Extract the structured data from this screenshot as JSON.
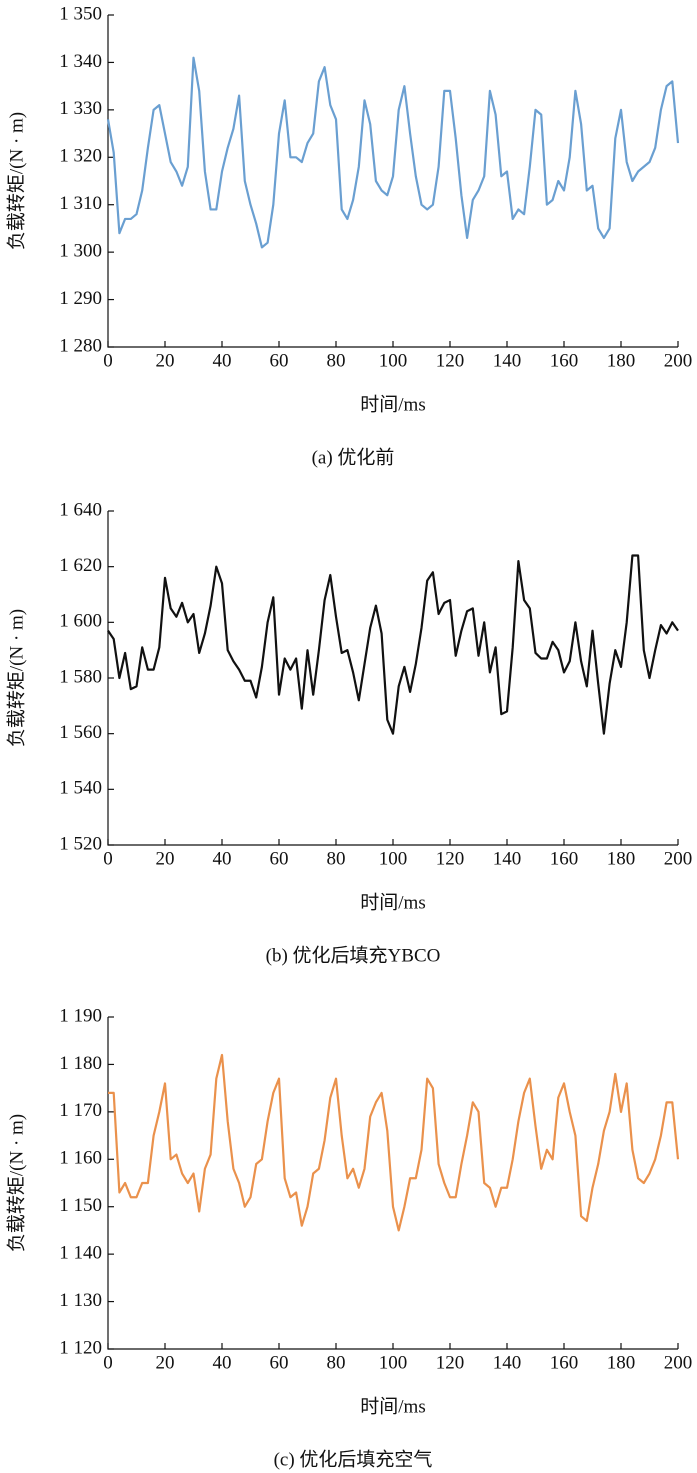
{
  "chart_data": [
    {
      "type": "line",
      "caption": "(a) 优化前",
      "x_label": "时间/ms",
      "y_label": "负载转矩/(N · m)",
      "color": "#6a9fd1",
      "x": [
        0,
        2,
        4,
        6,
        8,
        10,
        12,
        14,
        16,
        18,
        20,
        22,
        24,
        26,
        28,
        30,
        32,
        34,
        36,
        38,
        40,
        42,
        44,
        46,
        48,
        50,
        52,
        54,
        56,
        58,
        60,
        62,
        64,
        66,
        68,
        70,
        72,
        74,
        76,
        78,
        80,
        82,
        84,
        86,
        88,
        90,
        92,
        94,
        96,
        98,
        100,
        102,
        104,
        106,
        108,
        110,
        112,
        114,
        116,
        118,
        120,
        122,
        124,
        126,
        128,
        130,
        132,
        134,
        136,
        138,
        140,
        142,
        144,
        146,
        148,
        150,
        152,
        154,
        156,
        158,
        160,
        162,
        164,
        166,
        168,
        170,
        172,
        174,
        176,
        178,
        180,
        182,
        184,
        186,
        188,
        190,
        192,
        194,
        196,
        198,
        200
      ],
      "values": [
        1328,
        1321,
        1304,
        1307,
        1307,
        1308,
        1313,
        1322,
        1330,
        1331,
        1325,
        1319,
        1317,
        1314,
        1318,
        1341,
        1334,
        1317,
        1309,
        1309,
        1317,
        1322,
        1326,
        1333,
        1315,
        1310,
        1306,
        1301,
        1302,
        1310,
        1325,
        1332,
        1320,
        1320,
        1319,
        1323,
        1325,
        1336,
        1339,
        1331,
        1328,
        1309,
        1307,
        1311,
        1318,
        1332,
        1327,
        1315,
        1313,
        1312,
        1316,
        1330,
        1335,
        1325,
        1316,
        1310,
        1309,
        1310,
        1318,
        1334,
        1334,
        1324,
        1312,
        1303,
        1311,
        1313,
        1316,
        1334,
        1329,
        1316,
        1317,
        1307,
        1309,
        1308,
        1318,
        1330,
        1329,
        1310,
        1311,
        1315,
        1313,
        1320,
        1334,
        1327,
        1313,
        1314,
        1305,
        1303,
        1305,
        1324,
        1330,
        1319,
        1315,
        1317,
        1318,
        1319,
        1322,
        1330,
        1335,
        1336,
        1323
      ],
      "xlim": [
        0,
        200
      ],
      "xticks": [
        0,
        20,
        40,
        60,
        80,
        100,
        120,
        140,
        160,
        180,
        200
      ],
      "ylim": [
        1280,
        1350
      ],
      "yticks": [
        {
          "value": 1280,
          "label": "1 280"
        },
        {
          "value": 1290,
          "label": "1 290"
        },
        {
          "value": 1300,
          "label": "1 300"
        },
        {
          "value": 1310,
          "label": "1 310"
        },
        {
          "value": 1320,
          "label": "1 320"
        },
        {
          "value": 1330,
          "label": "1 330"
        },
        {
          "value": 1340,
          "label": "1 340"
        },
        {
          "value": 1350,
          "label": "1 350"
        }
      ]
    },
    {
      "type": "line",
      "caption": "(b) 优化后填充YBCO",
      "x_label": "时间/ms",
      "y_label": "负载转矩/(N · m)",
      "color": "#111111",
      "x": [
        0,
        2,
        4,
        6,
        8,
        10,
        12,
        14,
        16,
        18,
        20,
        22,
        24,
        26,
        28,
        30,
        32,
        34,
        36,
        38,
        40,
        42,
        44,
        46,
        48,
        50,
        52,
        54,
        56,
        58,
        60,
        62,
        64,
        66,
        68,
        70,
        72,
        74,
        76,
        78,
        80,
        82,
        84,
        86,
        88,
        90,
        92,
        94,
        96,
        98,
        100,
        102,
        104,
        106,
        108,
        110,
        112,
        114,
        116,
        118,
        120,
        122,
        124,
        126,
        128,
        130,
        132,
        134,
        136,
        138,
        140,
        142,
        144,
        146,
        148,
        150,
        152,
        154,
        156,
        158,
        160,
        162,
        164,
        166,
        168,
        170,
        172,
        174,
        176,
        178,
        180,
        182,
        184,
        186,
        188,
        190,
        192,
        194,
        196,
        198,
        200
      ],
      "values": [
        1597,
        1594,
        1580,
        1589,
        1576,
        1577,
        1591,
        1583,
        1583,
        1591,
        1616,
        1605,
        1602,
        1607,
        1600,
        1603,
        1589,
        1596,
        1606,
        1620,
        1614,
        1590,
        1586,
        1583,
        1579,
        1579,
        1573,
        1584,
        1600,
        1609,
        1574,
        1587,
        1583,
        1587,
        1569,
        1590,
        1574,
        1590,
        1608,
        1617,
        1602,
        1589,
        1590,
        1582,
        1572,
        1585,
        1598,
        1606,
        1596,
        1565,
        1560,
        1577,
        1584,
        1575,
        1585,
        1598,
        1615,
        1618,
        1603,
        1607,
        1608,
        1588,
        1597,
        1604,
        1605,
        1588,
        1600,
        1582,
        1591,
        1567,
        1568,
        1591,
        1622,
        1608,
        1605,
        1589,
        1587,
        1587,
        1593,
        1590,
        1582,
        1586,
        1600,
        1586,
        1577,
        1597,
        1578,
        1560,
        1578,
        1590,
        1584,
        1600,
        1624,
        1624,
        1590,
        1580,
        1590,
        1599,
        1596,
        1600,
        1597
      ],
      "xlim": [
        0,
        200
      ],
      "xticks": [
        0,
        20,
        40,
        60,
        80,
        100,
        120,
        140,
        160,
        180,
        200
      ],
      "ylim": [
        1520,
        1640
      ],
      "yticks": [
        {
          "value": 1520,
          "label": "1 520"
        },
        {
          "value": 1540,
          "label": "1 540"
        },
        {
          "value": 1560,
          "label": "1 560"
        },
        {
          "value": 1580,
          "label": "1 580"
        },
        {
          "value": 1600,
          "label": "1 600"
        },
        {
          "value": 1620,
          "label": "1 620"
        },
        {
          "value": 1640,
          "label": "1 640"
        }
      ]
    },
    {
      "type": "line",
      "caption": "(c) 优化后填充空气",
      "x_label": "时间/ms",
      "y_label": "负载转矩/(N · m)",
      "color": "#ea914c",
      "x": [
        0,
        2,
        4,
        6,
        8,
        10,
        12,
        14,
        16,
        18,
        20,
        22,
        24,
        26,
        28,
        30,
        32,
        34,
        36,
        38,
        40,
        42,
        44,
        46,
        48,
        50,
        52,
        54,
        56,
        58,
        60,
        62,
        64,
        66,
        68,
        70,
        72,
        74,
        76,
        78,
        80,
        82,
        84,
        86,
        88,
        90,
        92,
        94,
        96,
        98,
        100,
        102,
        104,
        106,
        108,
        110,
        112,
        114,
        116,
        118,
        120,
        122,
        124,
        126,
        128,
        130,
        132,
        134,
        136,
        138,
        140,
        142,
        144,
        146,
        148,
        150,
        152,
        154,
        156,
        158,
        160,
        162,
        164,
        166,
        168,
        170,
        172,
        174,
        176,
        178,
        180,
        182,
        184,
        186,
        188,
        190,
        192,
        194,
        196,
        198,
        200
      ],
      "values": [
        1174,
        1174,
        1153,
        1155,
        1152,
        1152,
        1155,
        1155,
        1165,
        1170,
        1176,
        1160,
        1161,
        1157,
        1155,
        1157,
        1149,
        1158,
        1161,
        1177,
        1182,
        1168,
        1158,
        1155,
        1150,
        1152,
        1159,
        1160,
        1168,
        1174,
        1177,
        1156,
        1152,
        1153,
        1146,
        1150,
        1157,
        1158,
        1164,
        1173,
        1177,
        1165,
        1156,
        1158,
        1154,
        1158,
        1169,
        1172,
        1174,
        1166,
        1150,
        1145,
        1150,
        1156,
        1156,
        1162,
        1177,
        1175,
        1159,
        1155,
        1152,
        1152,
        1159,
        1165,
        1172,
        1170,
        1155,
        1154,
        1150,
        1154,
        1154,
        1160,
        1168,
        1174,
        1177,
        1167,
        1158,
        1162,
        1160,
        1173,
        1176,
        1170,
        1165,
        1148,
        1147,
        1154,
        1159,
        1166,
        1170,
        1178,
        1170,
        1176,
        1162,
        1156,
        1155,
        1157,
        1160,
        1165,
        1172,
        1172,
        1160
      ],
      "xlim": [
        0,
        200
      ],
      "xticks": [
        0,
        20,
        40,
        60,
        80,
        100,
        120,
        140,
        160,
        180,
        200
      ],
      "ylim": [
        1120,
        1190
      ],
      "yticks": [
        {
          "value": 1120,
          "label": "1 120"
        },
        {
          "value": 1130,
          "label": "1 130"
        },
        {
          "value": 1140,
          "label": "1 140"
        },
        {
          "value": 1150,
          "label": "1 150"
        },
        {
          "value": 1160,
          "label": "1 160"
        },
        {
          "value": 1170,
          "label": "1 170"
        },
        {
          "value": 1180,
          "label": "1 180"
        },
        {
          "value": 1190,
          "label": "1 190"
        }
      ]
    }
  ]
}
